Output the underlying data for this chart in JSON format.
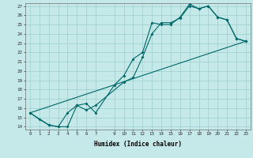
{
  "xlabel": "Humidex (Indice chaleur)",
  "bg_color": "#c5e8e8",
  "grid_color": "#9ecece",
  "line_color": "#006868",
  "xlim": [
    -0.5,
    23.5
  ],
  "ylim": [
    13.7,
    27.3
  ],
  "xticks": [
    0,
    1,
    2,
    3,
    4,
    5,
    6,
    7,
    9,
    10,
    11,
    12,
    13,
    14,
    15,
    16,
    17,
    18,
    19,
    20,
    21,
    22,
    23
  ],
  "yticks": [
    14,
    15,
    16,
    17,
    18,
    19,
    20,
    21,
    22,
    23,
    24,
    25,
    26,
    27
  ],
  "line1_x": [
    0,
    1,
    2,
    3,
    4,
    5,
    6,
    7,
    10,
    11,
    12,
    13,
    14,
    15,
    16,
    17,
    18,
    19,
    20,
    21,
    22,
    23
  ],
  "line1_y": [
    15.5,
    14.8,
    14.2,
    14.0,
    15.5,
    16.3,
    15.8,
    16.3,
    18.8,
    19.3,
    21.5,
    24.0,
    25.2,
    25.2,
    25.7,
    27.0,
    26.7,
    27.0,
    25.8,
    25.5,
    23.5,
    23.2
  ],
  "line2_x": [
    0,
    2,
    3,
    4,
    5,
    6,
    7,
    9,
    10,
    11,
    12,
    13,
    14,
    15,
    16,
    17,
    18,
    19,
    20,
    21,
    22,
    23
  ],
  "line2_y": [
    15.5,
    14.2,
    14.0,
    14.0,
    16.3,
    16.5,
    15.5,
    18.5,
    19.5,
    21.3,
    22.0,
    25.2,
    25.0,
    25.0,
    25.8,
    27.2,
    26.7,
    27.0,
    25.8,
    25.5,
    23.5,
    23.2
  ],
  "line3_x": [
    0,
    23
  ],
  "line3_y": [
    15.5,
    23.2
  ]
}
